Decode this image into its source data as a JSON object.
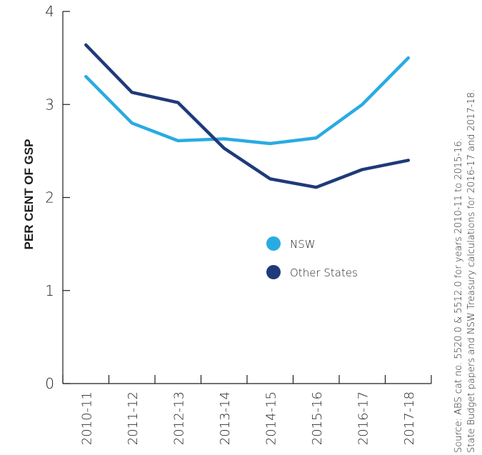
{
  "chart_data": {
    "type": "line",
    "title": "",
    "xlabel": "",
    "ylabel": "PER CENT OF GSP",
    "categories": [
      "2010-11",
      "2011-12",
      "2012-13",
      "2013-14",
      "2014-15",
      "2015-16",
      "2016-17",
      "2017-18"
    ],
    "y_ticks": [
      "0",
      "1",
      "2",
      "3",
      "4"
    ],
    "ylim": [
      0,
      4
    ],
    "grid": false,
    "legend_position": "center",
    "series": [
      {
        "name": "NSW",
        "color": "#29abe2",
        "values": [
          3.3,
          2.8,
          2.61,
          2.63,
          2.58,
          2.64,
          3.0,
          3.5
        ]
      },
      {
        "name": "Other States",
        "color": "#1f3a7a",
        "values": [
          3.64,
          3.13,
          3.02,
          2.53,
          2.2,
          2.11,
          2.3,
          2.4
        ]
      }
    ],
    "source_note": [
      "Source: ABS cat no. 5520.0 & 5512.0 for years 2010-11 to 2015-16.",
      "State Budget papers and NSW Treasury calculations for 2016-17 and 2017-18."
    ]
  }
}
